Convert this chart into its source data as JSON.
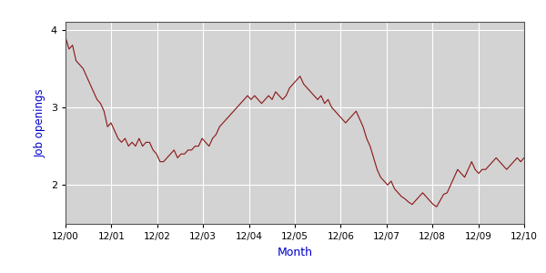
{
  "xlabel": "Month",
  "ylabel": "Job openings",
  "line_color": "#8B1414",
  "background_color": "#D3D3D3",
  "fig_background": "#FFFFFF",
  "ylim": [
    1.5,
    4.1
  ],
  "yticks": [
    2,
    3,
    4
  ],
  "xlabel_color": "#0000CC",
  "ylabel_color": "#0000CC",
  "xtick_labels": [
    "12/00",
    "12/01",
    "12/02",
    "12/03",
    "12/04",
    "12/05",
    "12/06",
    "12/07",
    "12/08",
    "12/09",
    "12/10"
  ],
  "values": [
    3.9,
    3.75,
    3.8,
    3.6,
    3.55,
    3.5,
    3.4,
    3.3,
    3.2,
    3.1,
    3.05,
    2.95,
    2.75,
    2.8,
    2.7,
    2.6,
    2.55,
    2.6,
    2.5,
    2.55,
    2.5,
    2.6,
    2.5,
    2.55,
    2.55,
    2.45,
    2.4,
    2.3,
    2.3,
    2.35,
    2.4,
    2.45,
    2.35,
    2.4,
    2.4,
    2.45,
    2.45,
    2.5,
    2.5,
    2.6,
    2.55,
    2.5,
    2.6,
    2.65,
    2.75,
    2.8,
    2.85,
    2.9,
    2.95,
    3.0,
    3.05,
    3.1,
    3.15,
    3.1,
    3.15,
    3.1,
    3.05,
    3.1,
    3.15,
    3.1,
    3.2,
    3.15,
    3.1,
    3.15,
    3.25,
    3.3,
    3.35,
    3.4,
    3.3,
    3.25,
    3.2,
    3.15,
    3.1,
    3.15,
    3.05,
    3.1,
    3.0,
    2.95,
    2.9,
    2.85,
    2.8,
    2.85,
    2.9,
    2.95,
    2.85,
    2.75,
    2.6,
    2.5,
    2.35,
    2.2,
    2.1,
    2.05,
    2.0,
    2.05,
    1.95,
    1.9,
    1.85,
    1.82,
    1.78,
    1.75,
    1.8,
    1.85,
    1.9,
    1.85,
    1.8,
    1.75,
    1.72,
    1.8,
    1.88,
    1.9,
    2.0,
    2.1,
    2.2,
    2.15,
    2.1,
    2.2,
    2.3,
    2.2,
    2.15,
    2.2,
    2.2,
    2.25,
    2.3,
    2.35,
    2.3,
    2.25,
    2.2,
    2.25,
    2.3,
    2.35,
    2.3,
    2.35
  ]
}
